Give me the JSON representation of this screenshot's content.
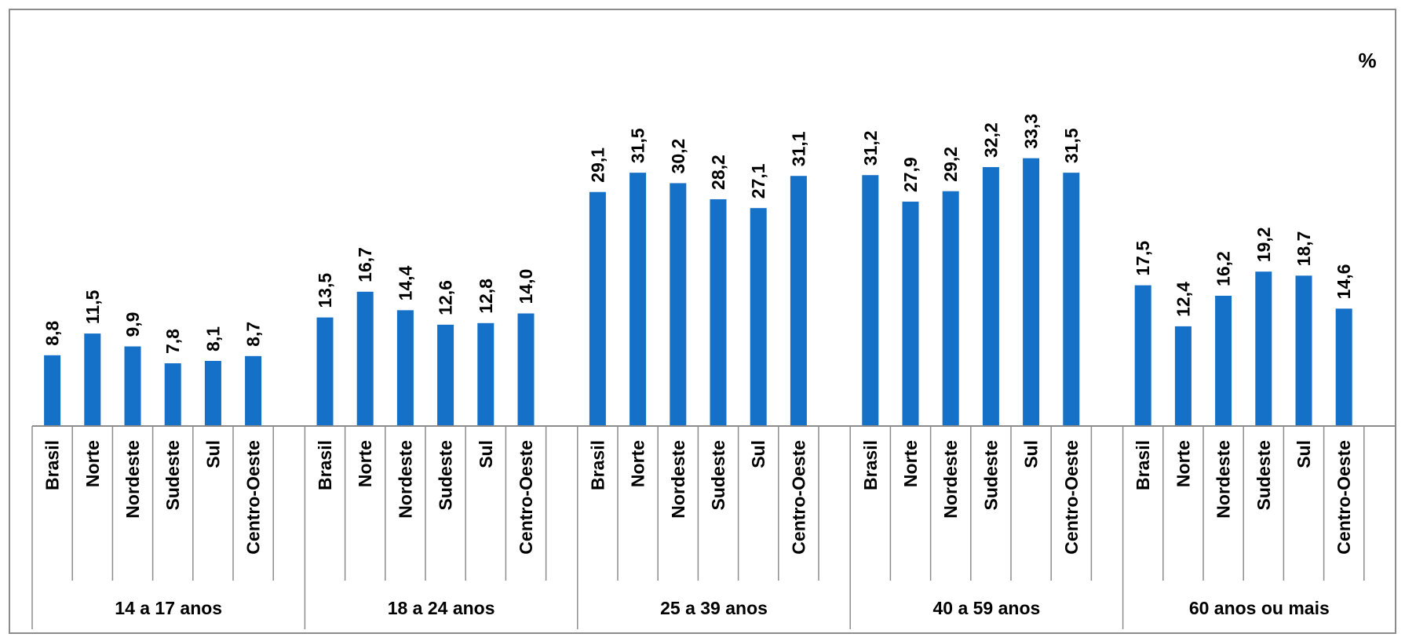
{
  "chart_data": {
    "type": "bar",
    "unit_label": "%",
    "bar_color": "#1570C8",
    "groups": [
      {
        "label": "14 a 17 anos",
        "categories": [
          "Brasil",
          "Norte",
          "Nordeste",
          "Sudeste",
          "Sul",
          "Centro-Oeste"
        ],
        "values": [
          8.8,
          11.5,
          9.9,
          7.8,
          8.1,
          8.7
        ],
        "value_labels": [
          "8,8",
          "11,5",
          "9,9",
          "7,8",
          "8,1",
          "8,7"
        ]
      },
      {
        "label": "18 a 24 anos",
        "categories": [
          "Brasil",
          "Norte",
          "Nordeste",
          "Sudeste",
          "Sul",
          "Centro-Oeste"
        ],
        "values": [
          13.5,
          16.7,
          14.4,
          12.6,
          12.8,
          14.0
        ],
        "value_labels": [
          "13,5",
          "16,7",
          "14,4",
          "12,6",
          "12,8",
          "14,0"
        ]
      },
      {
        "label": "25 a 39 anos",
        "categories": [
          "Brasil",
          "Norte",
          "Nordeste",
          "Sudeste",
          "Sul",
          "Centro-Oeste"
        ],
        "values": [
          29.1,
          31.5,
          30.2,
          28.2,
          27.1,
          31.1
        ],
        "value_labels": [
          "29,1",
          "31,5",
          "30,2",
          "28,2",
          "27,1",
          "31,1"
        ]
      },
      {
        "label": "40 a 59 anos",
        "categories": [
          "Brasil",
          "Norte",
          "Nordeste",
          "Sudeste",
          "Sul",
          "Centro-Oeste"
        ],
        "values": [
          31.2,
          27.9,
          29.2,
          32.2,
          33.3,
          31.5
        ],
        "value_labels": [
          "31,2",
          "27,9",
          "29,2",
          "32,2",
          "33,3",
          "31,5"
        ]
      },
      {
        "label": "60 anos ou mais",
        "categories": [
          "Brasil",
          "Norte",
          "Nordeste",
          "Sudeste",
          "Sul",
          "Centro-Oeste"
        ],
        "values": [
          17.5,
          12.4,
          16.2,
          19.2,
          18.7,
          14.6
        ],
        "value_labels": [
          "17,5",
          "12,4",
          "16,2",
          "19,2",
          "18,7",
          "14,6"
        ]
      }
    ],
    "ylim": [
      0,
      40
    ],
    "grid": false,
    "legend": "none"
  }
}
